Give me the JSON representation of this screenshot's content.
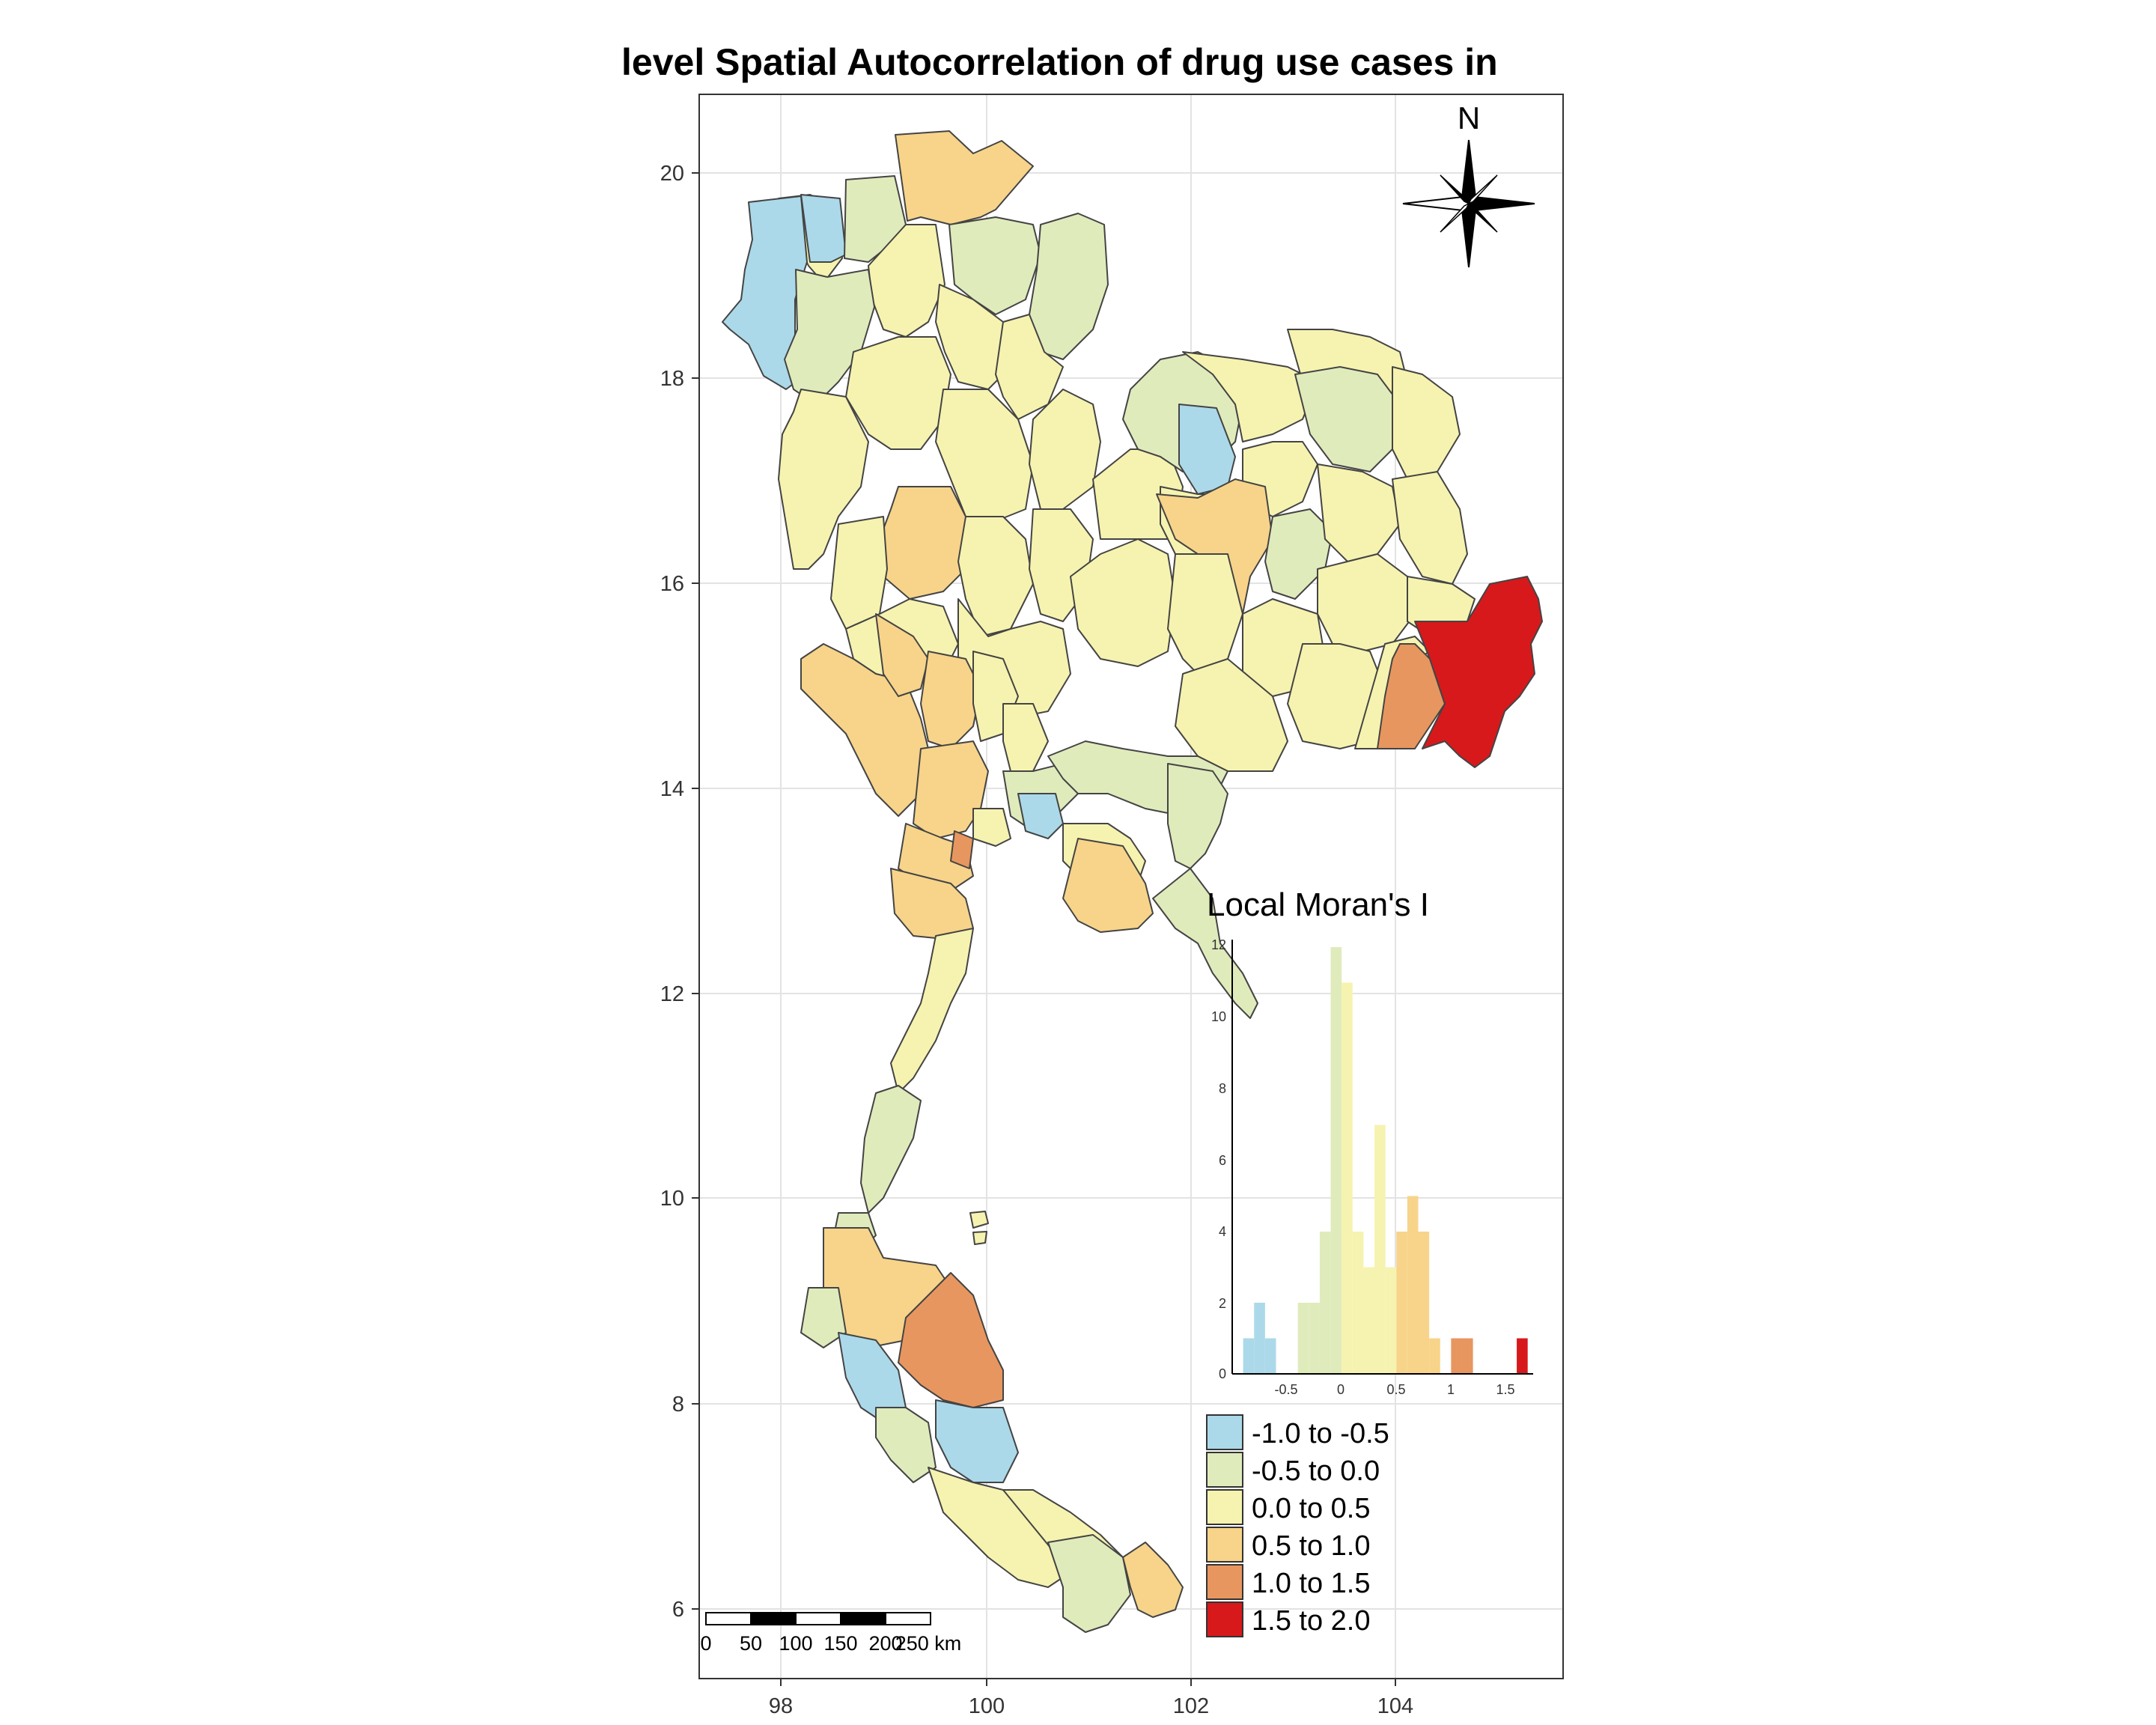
{
  "title": "level Spatial Autocorrelation of drug use cases in",
  "north_arrow_label": "N",
  "axes": {
    "x_ticks": [
      "98",
      "100",
      "102",
      "104"
    ],
    "y_ticks": [
      "20",
      "18",
      "16",
      "14",
      "12",
      "10",
      "8",
      "6"
    ]
  },
  "scale_bar": {
    "labels": [
      "0",
      "50",
      "100",
      "150",
      "200",
      "250 km"
    ]
  },
  "inset": {
    "title": "Local Moran's I",
    "y_ticks": [
      "12",
      "10",
      "8",
      "6",
      "4",
      "2",
      "0"
    ],
    "x_ticks": [
      "-0.5",
      "0",
      "0.5",
      "1",
      "1.5"
    ]
  },
  "legend": {
    "items": [
      {
        "label": "-1.0 to -0.5",
        "color": "#abd9e9"
      },
      {
        "label": "-0.5 to 0.0",
        "color": "#e0ebbc"
      },
      {
        "label": "0.0 to 0.5",
        "color": "#f6f3b0"
      },
      {
        "label": "0.5 to 1.0",
        "color": "#f7d48a"
      },
      {
        "label": "1.0 to 1.5",
        "color": "#e8965f"
      },
      {
        "label": "1.5 to 2.0",
        "color": "#d7191c"
      }
    ]
  },
  "chart_data": {
    "type": "histogram",
    "title": "Local Moran's I",
    "x": [
      -0.85,
      -0.75,
      -0.65,
      -0.35,
      -0.25,
      -0.15,
      -0.05,
      0.05,
      0.15,
      0.25,
      0.35,
      0.45,
      0.55,
      0.65,
      0.75,
      0.85,
      1.05,
      1.15,
      1.25,
      1.65
    ],
    "values": [
      1,
      2,
      1,
      2,
      2,
      4,
      12,
      11,
      4,
      3,
      7,
      3,
      4,
      5,
      4,
      1,
      1,
      1,
      0,
      1
    ],
    "bin_width": 0.1,
    "xlim": [
      -1.0,
      1.75
    ],
    "ylim": [
      0,
      12
    ],
    "xlabel": "",
    "ylabel": ""
  }
}
